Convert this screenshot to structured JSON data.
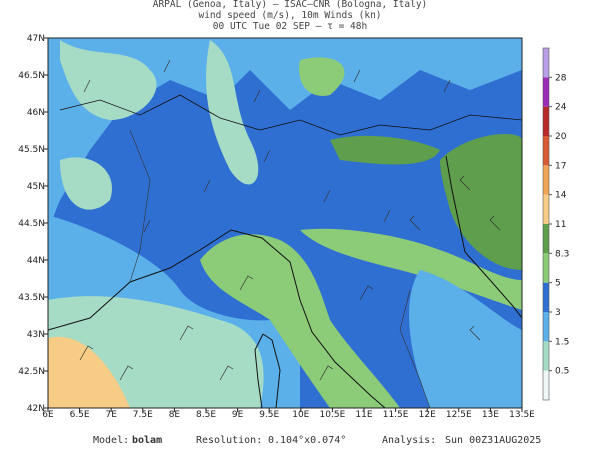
{
  "header": {
    "lines": [
      "ARPAL (Genoa, Italy)  —  ISAC–CNR (Bologna, Italy)",
      "wind speed (m/s), 10m Winds (kn)",
      "00 UTC Tue 02 SEP  —  τ = 48h"
    ]
  },
  "map": {
    "xlim": [
      6,
      13.5
    ],
    "ylim": [
      42,
      47
    ],
    "xticks": [
      {
        "value": 6,
        "label": "6E"
      },
      {
        "value": 6.5,
        "label": "6.5E"
      },
      {
        "value": 7,
        "label": "7E"
      },
      {
        "value": 7.5,
        "label": "7.5E"
      },
      {
        "value": 8,
        "label": "8E"
      },
      {
        "value": 8.5,
        "label": "8.5E"
      },
      {
        "value": 9,
        "label": "9E"
      },
      {
        "value": 9.5,
        "label": "9.5E"
      },
      {
        "value": 10,
        "label": "10E"
      },
      {
        "value": 10.5,
        "label": "10.5E"
      },
      {
        "value": 11,
        "label": "11E"
      },
      {
        "value": 11.5,
        "label": "11.5E"
      },
      {
        "value": 12,
        "label": "12E"
      },
      {
        "value": 12.5,
        "label": "12.5E"
      },
      {
        "value": 13,
        "label": "13E"
      },
      {
        "value": 13.5,
        "label": "13.5E"
      }
    ],
    "yticks": [
      {
        "value": 42,
        "label": "42N"
      },
      {
        "value": 42.5,
        "label": "42.5N"
      },
      {
        "value": 43,
        "label": "43N"
      },
      {
        "value": 43.5,
        "label": "43.5N"
      },
      {
        "value": 44,
        "label": "44N"
      },
      {
        "value": 44.5,
        "label": "44.5N"
      },
      {
        "value": 45,
        "label": "45N"
      },
      {
        "value": 45.5,
        "label": "45.5N"
      },
      {
        "value": 46,
        "label": "46N"
      },
      {
        "value": 46.5,
        "label": "46.5N"
      },
      {
        "value": 47,
        "label": "47N"
      }
    ]
  },
  "colorbar": {
    "levels": [
      0.5,
      1.5,
      3,
      5,
      8.3,
      11,
      14,
      17,
      20,
      24,
      28
    ],
    "colors": [
      "#eef6f6",
      "#a6dcc6",
      "#5cb0ea",
      "#2f6fd2",
      "#8ccb78",
      "#5e9e4c",
      "#f6cc86",
      "#f0a456",
      "#d85a34",
      "#b82828",
      "#9a2cb8",
      "#b8a0e6"
    ]
  },
  "footer": {
    "model_label": "Model:",
    "model": "bolam",
    "resolution_label": "Resolution:",
    "resolution": "0.104°x0.074°",
    "analysis_label": "Analysis:",
    "analysis": "Sun 00Z31AUG2025"
  }
}
